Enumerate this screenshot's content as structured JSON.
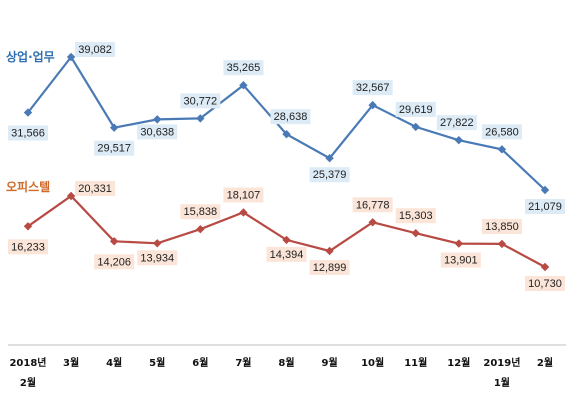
{
  "chart_data": {
    "type": "line",
    "categories": [
      [
        "2018년",
        "2월"
      ],
      [
        "3월"
      ],
      [
        "4월"
      ],
      [
        "5월"
      ],
      [
        "6월"
      ],
      [
        "7월"
      ],
      [
        "8월"
      ],
      [
        "9월"
      ],
      [
        "10월"
      ],
      [
        "11월"
      ],
      [
        "12월"
      ],
      [
        "2019년",
        "1월"
      ],
      [
        "2월"
      ]
    ],
    "series": [
      {
        "name": "상업·업무",
        "color": "#4a7ab5",
        "label_bg": "#dcebf6",
        "name_color": "#2f6fb0",
        "values": [
          31566,
          39082,
          29517,
          30638,
          30772,
          35265,
          28638,
          25379,
          32567,
          29619,
          27822,
          26580,
          21079
        ],
        "labels": [
          "31,566",
          "39,082",
          "29,517",
          "30,638",
          "30,772",
          "35,265",
          "28,638",
          "25,379",
          "32,567",
          "29,619",
          "27,822",
          "26,580",
          "21,079"
        ]
      },
      {
        "name": "오피스텔",
        "color": "#b84a44",
        "label_bg": "#fbe5d8",
        "name_color": "#d06a2a",
        "values": [
          16233,
          20331,
          14206,
          13934,
          15838,
          18107,
          14394,
          12899,
          16778,
          15303,
          13901,
          13850,
          10730
        ],
        "labels": [
          "16,233",
          "20,331",
          "14,206",
          "13,934",
          "15,838",
          "18,107",
          "14,394",
          "12,899",
          "16,778",
          "15,303",
          "13,901",
          "13,850",
          "10,730"
        ]
      }
    ],
    "title": "",
    "xlabel": "",
    "ylabel": "",
    "grid": false
  }
}
